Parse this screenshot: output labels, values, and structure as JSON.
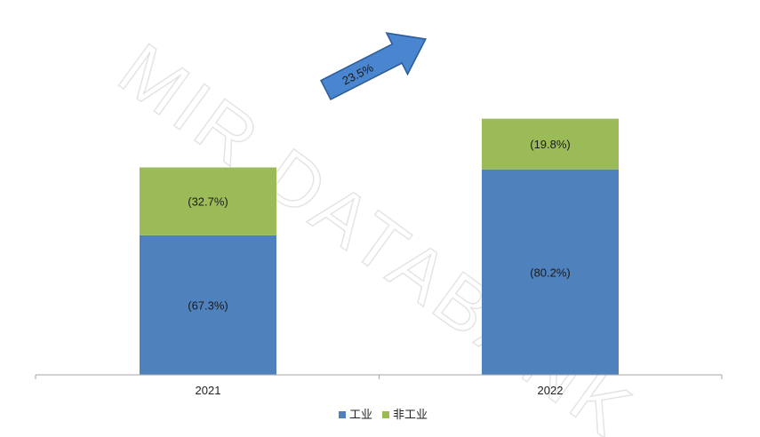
{
  "watermark": "MIR DATABANK",
  "growth_annotation": "23.5%",
  "colors": {
    "industrial": "#4F81BD",
    "non_industrial": "#9BBB59",
    "arrow_fill": "#4A86D0",
    "arrow_stroke": "#2E5C99"
  },
  "chart_data": {
    "type": "bar",
    "stacked": true,
    "categories": [
      "2021",
      "2022"
    ],
    "series": [
      {
        "name": "工业",
        "values": [
          67.3,
          80.2
        ],
        "labels": [
          "(67.3%)",
          "(80.2%)"
        ]
      },
      {
        "name": "非工业",
        "values": [
          32.7,
          19.8
        ],
        "labels": [
          "(32.7%)",
          "(19.8%)"
        ]
      }
    ],
    "relative_total": [
      100,
      123.5
    ],
    "title": "",
    "xlabel": "",
    "ylabel": "",
    "legend_position": "bottom",
    "grid": false
  }
}
